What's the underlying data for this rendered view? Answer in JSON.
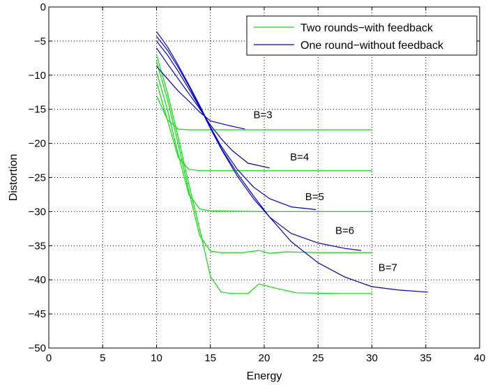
{
  "chart_data": {
    "type": "line",
    "title": "",
    "xlabel": "Energy",
    "ylabel": "Distortion",
    "xlim": [
      0,
      40
    ],
    "ylim": [
      -50,
      0
    ],
    "xticks": [
      0,
      5,
      10,
      15,
      20,
      25,
      30,
      35,
      40
    ],
    "yticks": [
      0,
      -5,
      -10,
      -15,
      -20,
      -25,
      -30,
      -35,
      -40,
      -45,
      -50
    ],
    "grid": true,
    "legend_position": "top-right",
    "legend": [
      {
        "label": "Two rounds−with feedback",
        "color": "#00e600"
      },
      {
        "label": "One round−without feedback",
        "color": "#0000cc"
      }
    ],
    "annotations": [
      {
        "text": "B=3",
        "x": 19.0,
        "y": -16.3
      },
      {
        "text": "B=4",
        "x": 22.4,
        "y": -22.5
      },
      {
        "text": "B=5",
        "x": 23.8,
        "y": -28.3
      },
      {
        "text": "B=6",
        "x": 26.6,
        "y": -33.3
      },
      {
        "text": "B=7",
        "x": 30.6,
        "y": -38.7
      }
    ],
    "series": [
      {
        "group": 0,
        "B": 3,
        "x": [
          10,
          11,
          12,
          13,
          14,
          15,
          20,
          25,
          30
        ],
        "y": [
          -13,
          -16.5,
          -17.9,
          -18.0,
          -18.0,
          -18.0,
          -18.0,
          -18.0,
          -18.0
        ]
      },
      {
        "group": 0,
        "B": 4,
        "x": [
          10,
          11,
          12,
          13,
          14,
          15,
          20,
          25,
          30
        ],
        "y": [
          -11,
          -16.5,
          -22.0,
          -23.8,
          -24.0,
          -24.0,
          -24.0,
          -24.0,
          -24.0
        ]
      },
      {
        "group": 0,
        "B": 5,
        "x": [
          10,
          11,
          12,
          13,
          14,
          15,
          20,
          25,
          30
        ],
        "y": [
          -9.5,
          -15.0,
          -21.5,
          -27.5,
          -29.6,
          -29.9,
          -30.0,
          -30.0,
          -30.0
        ]
      },
      {
        "group": 0,
        "B": 6,
        "x": [
          10,
          11,
          12,
          13,
          14,
          15,
          16,
          18,
          19.5,
          20.5,
          22,
          25,
          30
        ],
        "y": [
          -8.0,
          -13.5,
          -20.0,
          -27.0,
          -33.5,
          -35.8,
          -36.0,
          -36.0,
          -35.7,
          -36.1,
          -35.9,
          -36.0,
          -36.0
        ]
      },
      {
        "group": 0,
        "B": 7,
        "x": [
          10,
          11,
          12,
          13,
          14,
          15,
          16,
          17,
          18.5,
          19.5,
          21,
          23,
          27,
          30
        ],
        "y": [
          -7.0,
          -12.5,
          -19.0,
          -26.0,
          -32.5,
          -39.5,
          -41.8,
          -42.0,
          -42.0,
          -40.6,
          -41.2,
          -41.9,
          -42.0,
          -42.0
        ]
      },
      {
        "group": 1,
        "B": 3,
        "x": [
          10,
          11,
          12,
          13,
          14,
          15,
          16.5,
          18.2
        ],
        "y": [
          -8.7,
          -10.5,
          -12.3,
          -13.8,
          -15.4,
          -16.7,
          -17.3,
          -17.9
        ]
      },
      {
        "group": 1,
        "B": 4,
        "x": [
          10,
          11,
          12,
          13,
          14,
          15,
          16,
          17,
          18.5,
          20.5
        ],
        "y": [
          -6.0,
          -8.3,
          -10.5,
          -12.7,
          -14.9,
          -17.3,
          -19.3,
          -21.0,
          -22.9,
          -23.6
        ]
      },
      {
        "group": 1,
        "B": 5,
        "x": [
          10,
          11,
          12,
          13,
          14,
          15,
          16,
          17.5,
          19,
          20.5,
          22.5,
          24.8
        ],
        "y": [
          -5.0,
          -7.0,
          -9.4,
          -12.0,
          -14.7,
          -17.6,
          -20.4,
          -23.8,
          -26.4,
          -28.1,
          -29.3,
          -29.7
        ]
      },
      {
        "group": 1,
        "B": 6,
        "x": [
          10,
          11,
          12,
          13,
          14,
          15,
          16,
          17.5,
          19,
          20.5,
          22.5,
          25,
          27.5,
          29
        ],
        "y": [
          -4.3,
          -6.3,
          -8.8,
          -11.6,
          -14.6,
          -17.8,
          -20.8,
          -24.8,
          -28.1,
          -30.8,
          -33.2,
          -34.6,
          -35.4,
          -35.7
        ]
      },
      {
        "group": 1,
        "B": 7,
        "x": [
          10,
          11,
          12,
          13,
          14,
          15,
          16,
          17.5,
          19,
          20.5,
          22.5,
          25,
          27.5,
          30,
          32.5,
          35.2
        ],
        "y": [
          -3.6,
          -5.8,
          -8.5,
          -11.4,
          -14.4,
          -17.6,
          -20.7,
          -24.4,
          -27.7,
          -30.8,
          -34.4,
          -37.5,
          -39.6,
          -41.0,
          -41.5,
          -41.8
        ]
      }
    ]
  }
}
